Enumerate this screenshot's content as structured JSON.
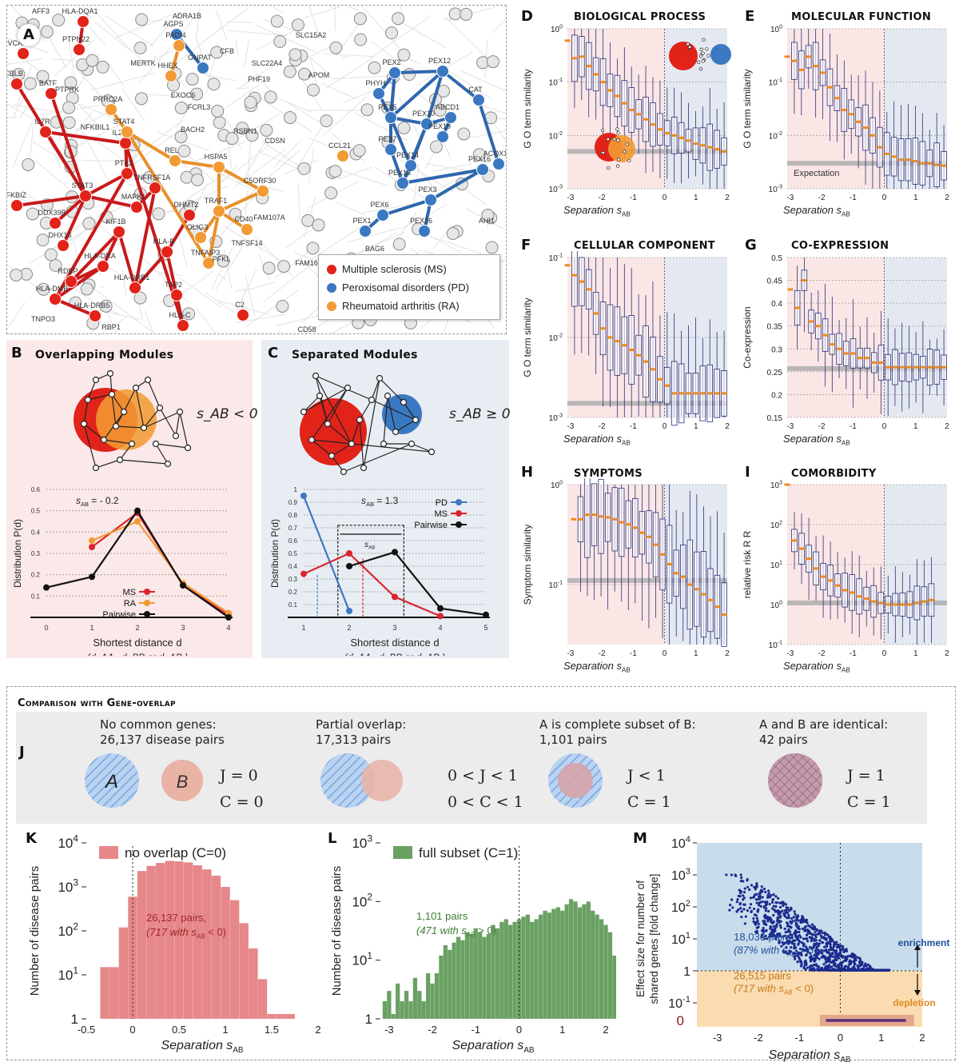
{
  "legend_network": [
    {
      "label": "Multiple sclerosis (MS)",
      "color": "#e2231a"
    },
    {
      "label": "Peroxisomal disorders (PD)",
      "color": "#3b78c2"
    },
    {
      "label": "Rheumatoid arthritis (RA)",
      "color": "#f29a33"
    }
  ],
  "network_genes": {
    "ms": [
      "HLA-DQA1",
      "PTPN22",
      "VCAM1",
      "CBLB",
      "BATF",
      "IL7R",
      "IL2RA",
      "PTK2",
      "STAT3",
      "MAPK1",
      "NFKBIZ",
      "DDX39B",
      "DHX16",
      "KIF1B",
      "RDBP",
      "HLA-DRA",
      "HLA-DMB",
      "HLA-DRB5",
      "HLA-DRB1",
      "HLA-B",
      "TAP2",
      "HLA-C",
      "TNFRSF1A",
      "DHMT2",
      "C2"
    ],
    "pd": [
      "AGPS",
      "GNPAT",
      "PEX2",
      "PEX12",
      "CAT",
      "PHYH",
      "PEX5",
      "PEX10",
      "ABCD1",
      "PEX19",
      "PEX7",
      "PEX14",
      "PEX13",
      "PEX16",
      "ACOX1",
      "PEX6",
      "PEX3",
      "PEX1",
      "PEX26"
    ],
    "ra": [
      "PADI4",
      "HHEX",
      "PRRC2A",
      "STAT4",
      "REL",
      "HSPA5",
      "C5ORF30",
      "TRAF1",
      "OLIG3",
      "TNFAIP3",
      "CD40",
      "CCL21"
    ],
    "other": [
      "AFF3",
      "ADRA1B",
      "SLC15A2",
      "MERTK",
      "CFB",
      "SLC22A4",
      "PHF19",
      "EXOC6",
      "FCRL3",
      "APOM",
      "NFKBIL1",
      "BACH2",
      "RSBN1",
      "CDSN",
      "FAM107A",
      "TNFSF14",
      "FAM167A",
      "PFKL",
      "BAG6",
      "AHI1",
      "TNPO3",
      "PTPRK",
      "CD58",
      "RBP1"
    ]
  },
  "panels": {
    "A": {
      "letter": "A"
    },
    "B": {
      "letter": "B",
      "title": "Overlapping Modules",
      "relation": "s_AB < 0"
    },
    "C": {
      "letter": "C",
      "title": "Separated Modules",
      "relation": "s_AB ≥ 0"
    },
    "D": {
      "letter": "D",
      "title": "BIOLOGICAL PROCESS"
    },
    "E": {
      "letter": "E",
      "title": "MOLECULAR FUNCTION"
    },
    "F": {
      "letter": "F",
      "title": "CELLULAR COMPONENT"
    },
    "G": {
      "letter": "G",
      "title": "CO-EXPRESSION"
    },
    "H": {
      "letter": "H",
      "title": "SYMPTOMS"
    },
    "I": {
      "letter": "I",
      "title": "COMORBIDITY"
    },
    "J": {
      "letter": "J"
    },
    "K": {
      "letter": "K"
    },
    "L": {
      "letter": "L"
    },
    "M": {
      "letter": "M"
    }
  },
  "gene_overlap": {
    "title": "Comparison with Gene-overlap",
    "cases": [
      {
        "line1": "No common genes:",
        "line2": "26,137 disease pairs",
        "j": "J = 0",
        "c": "C = 0",
        "labelA": "A",
        "labelB": "B"
      },
      {
        "line1": "Partial overlap:",
        "line2": "17,313 pairs",
        "j": "0 < J < 1",
        "c": "0 < C < 1"
      },
      {
        "line1": "A is complete subset of B:",
        "line2": "1,101 pairs",
        "j": "J < 1",
        "c": "C = 1"
      },
      {
        "line1": "A and B are identical:",
        "line2": "42 pairs",
        "j": "J = 1",
        "c": "C = 1"
      }
    ]
  },
  "chart_data": [
    {
      "id": "B",
      "type": "line",
      "annotation": "s_AB = - 0.2",
      "xlabel": "Shortest distance d",
      "xlabel2": "(d_AA , d_BB or d_AB )",
      "ylabel": "Distribution P(d)",
      "xlim": [
        0,
        4
      ],
      "ylim": [
        0,
        0.6
      ],
      "x_ticks": [
        "0",
        "1",
        "2",
        "3",
        "4"
      ],
      "y_ticks": [
        "0.1",
        "0.2",
        "0.3",
        "0.4",
        "0.5",
        "0.6"
      ],
      "series": [
        {
          "name": "MS",
          "color": "#d9262e",
          "x": [
            1,
            2,
            3,
            4
          ],
          "y": [
            0.33,
            0.49,
            0.15,
            0.01
          ]
        },
        {
          "name": "RA",
          "color": "#f29a33",
          "x": [
            1,
            2,
            3,
            4
          ],
          "y": [
            0.36,
            0.45,
            0.16,
            0.02
          ]
        },
        {
          "name": "Pairwise",
          "color": "#111111",
          "x": [
            0,
            1,
            2,
            3,
            4
          ],
          "y": [
            0.14,
            0.19,
            0.5,
            0.15,
            0.0
          ]
        }
      ]
    },
    {
      "id": "C",
      "type": "line",
      "annotation": "s_AB = 1.3",
      "bracket_label": "s_AB",
      "xlabel": "Shortest distance d",
      "xlabel2": "(d_AA , d_BB or d_AB )",
      "ylabel": "Distribution P(d)",
      "xlim": [
        1,
        5
      ],
      "ylim": [
        0,
        1
      ],
      "x_ticks": [
        "1",
        "2",
        "3",
        "4",
        "5"
      ],
      "y_ticks": [
        "0.1",
        "0.2",
        "0.3",
        "0.4",
        "0.5",
        "0.6",
        "0.7",
        "0.8",
        "0.9",
        "1"
      ],
      "series": [
        {
          "name": "PD",
          "color": "#3b78c2",
          "x": [
            1,
            2
          ],
          "y": [
            0.95,
            0.05
          ]
        },
        {
          "name": "MS",
          "color": "#d9262e",
          "x": [
            1,
            2,
            3,
            4
          ],
          "y": [
            0.34,
            0.5,
            0.16,
            0.01
          ]
        },
        {
          "name": "Pairwise",
          "color": "#111111",
          "x": [
            2,
            3,
            4,
            5
          ],
          "y": [
            0.4,
            0.51,
            0.07,
            0.02
          ]
        }
      ]
    },
    {
      "id": "D",
      "type": "box",
      "log": true,
      "ylim_exp": [
        -3,
        0
      ],
      "expectation": 0.005,
      "xlabel": "Separation s_AB",
      "ylabel": "G O term similarity",
      "x_ticks": [
        "-3",
        "-2",
        "-1",
        "0",
        "1",
        "2"
      ],
      "y_ticks": [
        "10^-3",
        "10^-2",
        "10^-1",
        "10^0"
      ],
      "medians": [
        0.6,
        0.28,
        0.3,
        0.2,
        0.14,
        0.1,
        0.07,
        0.055,
        0.04,
        0.03,
        0.025,
        0.02,
        0.016,
        0.013,
        0.011,
        0.01,
        0.009,
        0.008,
        0.007,
        0.0065,
        0.006,
        0.0055,
        0.005
      ]
    },
    {
      "id": "E",
      "type": "box",
      "log": true,
      "ylim_exp": [
        -3,
        0
      ],
      "expectation": 0.003,
      "expectation_label": "Expectation",
      "xlabel": "Separation s_AB",
      "ylabel": "G O term similarity",
      "x_ticks": [
        "-3",
        "-2",
        "-1",
        "0",
        "1",
        "2"
      ],
      "y_ticks": [
        "10^-3",
        "10^-2",
        "10^-1",
        "10^0"
      ],
      "medians": [
        0.3,
        0.25,
        0.17,
        0.3,
        0.2,
        0.15,
        0.08,
        0.05,
        0.03,
        0.025,
        0.018,
        0.014,
        0.01,
        0.006,
        0.0045,
        0.004,
        0.0035,
        0.0035,
        0.0033,
        0.003,
        0.003,
        0.0028,
        0.0027
      ]
    },
    {
      "id": "F",
      "type": "box",
      "log": true,
      "ylim_exp": [
        -3,
        -1
      ],
      "expectation": 0.0015,
      "xlabel": "Separation s_AB",
      "ylabel": "G O term similarity",
      "x_ticks": [
        "-3",
        "-2",
        "-1",
        "0",
        "1",
        "2"
      ],
      "y_ticks": [
        "10^-3",
        "10^-2",
        "10^-1"
      ],
      "medians": [
        0.08,
        0.06,
        0.05,
        0.04,
        0.02,
        0.013,
        0.01,
        0.009,
        0.008,
        0.007,
        0.006,
        0.005,
        0.004,
        0.003,
        0.0025,
        0.002,
        0.002,
        0.002,
        0.002,
        0.002,
        0.002,
        0.002,
        0.002
      ]
    },
    {
      "id": "G",
      "type": "box",
      "log": false,
      "ylim": [
        0.15,
        0.5
      ],
      "expectation": 0.257,
      "xlabel": "Separation s_AB",
      "ylabel": "Co-expression",
      "x_ticks": [
        "-3",
        "-2",
        "-1",
        "0",
        "1",
        "2"
      ],
      "y_ticks": [
        "0.15",
        "0.2",
        "0.25",
        "0.3",
        "0.35",
        "0.4",
        "0.45",
        "0.5"
      ],
      "medians": [
        0.43,
        0.39,
        0.45,
        0.36,
        0.35,
        0.33,
        0.31,
        0.3,
        0.29,
        0.29,
        0.28,
        0.28,
        0.27,
        0.27,
        0.26,
        0.26,
        0.26,
        0.26,
        0.26,
        0.26,
        0.26,
        0.26,
        0.26
      ]
    },
    {
      "id": "H",
      "type": "box",
      "log": true,
      "ylim_exp": [
        -1.6,
        0
      ],
      "expectation": 0.11,
      "xlabel": "Separation s_AB",
      "ylabel": "Symptom similarity",
      "x_ticks": [
        "-3",
        "-2",
        "-1",
        "0",
        "1",
        "2"
      ],
      "y_ticks": [
        "10^-1",
        "10^0"
      ],
      "medians": [
        0.45,
        0.45,
        0.5,
        0.5,
        0.48,
        0.47,
        0.45,
        0.42,
        0.4,
        0.37,
        0.33,
        0.3,
        0.25,
        0.2,
        0.16,
        0.13,
        0.12,
        0.1,
        0.09,
        0.08,
        0.07,
        0.06,
        0.05
      ]
    },
    {
      "id": "I",
      "type": "box",
      "log": true,
      "ylim_exp": [
        -1,
        3
      ],
      "expectation": 1.1,
      "xlabel": "Separation s_AB",
      "ylabel": "relative risk R R",
      "x_ticks": [
        "-3",
        "-2",
        "-1",
        "0",
        "1",
        "2"
      ],
      "y_ticks": [
        "10^-1",
        "10^0",
        "10^1",
        "10^2",
        "10^3"
      ],
      "medians": [
        1000,
        40,
        25,
        14,
        8,
        5,
        4,
        3,
        2.3,
        2,
        1.6,
        1.4,
        1.2,
        1.1,
        1.0,
        1.0,
        1.0,
        1.0,
        1.1,
        1.2,
        1.3
      ]
    },
    {
      "id": "K",
      "type": "bar",
      "legend": "no overlap (C=0)",
      "annotation1": "26,137 pairs,",
      "annotation2": "(717 with s_AB < 0)",
      "xlabel": "Separation s_AB",
      "ylabel": "Number of disease pairs",
      "color": "#e6878a",
      "x_ticks": [
        "-0.5",
        "0",
        "0.5",
        "1",
        "1.5",
        "2"
      ],
      "xlim": [
        -0.5,
        2
      ],
      "ylim_exp": [
        0,
        4
      ],
      "y_ticks": [
        "1",
        "10^1",
        "10^2",
        "10^3",
        "10^4"
      ],
      "bin_start": -0.35,
      "bin_width": 0.1,
      "values": [
        15,
        15,
        120,
        600,
        2300,
        3000,
        3500,
        3900,
        3800,
        3600,
        3100,
        2500,
        1800,
        1000,
        500,
        150,
        40,
        8,
        1,
        1,
        1
      ]
    },
    {
      "id": "L",
      "type": "bar",
      "legend": "full subset (C=1)",
      "annotation1": "1,101 pairs",
      "annotation2": "(471 with s_AB > 0)",
      "xlabel": "Separation s_AB",
      "ylabel": "Number of disease pairs",
      "color": "#6aa163",
      "x_ticks": [
        "-3",
        "-2",
        "-1",
        "0",
        "1",
        "2"
      ],
      "xlim": [
        -3.2,
        2
      ],
      "ylim_exp": [
        0,
        3
      ],
      "y_ticks": [
        "1",
        "10^1",
        "10^2",
        "10^3"
      ],
      "bin_start": -3.15,
      "bin_width": 0.1,
      "values": [
        2,
        3,
        1,
        4,
        2,
        3,
        2,
        5,
        3,
        2,
        6,
        4,
        6,
        12,
        18,
        15,
        20,
        25,
        22,
        30,
        28,
        35,
        30,
        25,
        28,
        40,
        35,
        45,
        50,
        40,
        45,
        50,
        55,
        60,
        45,
        50,
        60,
        70,
        65,
        75,
        80,
        70,
        90,
        110,
        100,
        80,
        90,
        100,
        70,
        60,
        50,
        40,
        30,
        12,
        4,
        3,
        5,
        2,
        4,
        3,
        5,
        4,
        2,
        3,
        5
      ]
    },
    {
      "id": "M",
      "type": "scatter",
      "annotation1_a": "18,036 pairs,",
      "annotation1_b": "(87% with s_AB > 0)",
      "annotation2_a": "26,515 pairs",
      "annotation2_b": "(717 with s_AB < 0)",
      "label_up": "enrichment",
      "label_down": "depletion",
      "zero_label": "0",
      "xlabel": "Separation s_AB",
      "ylabel": "Effect size for number of shared genes [fold change]",
      "x_ticks": [
        "-3",
        "-2",
        "-1",
        "0",
        "1",
        "2"
      ],
      "xlim": [
        -3.5,
        2
      ],
      "ylim_exp": [
        -1,
        4
      ],
      "y_ticks": [
        "10^-1",
        "1",
        "10^1",
        "10^2",
        "10^3",
        "10^4"
      ],
      "points_summary": {
        "x_range": [
          -2.8,
          1.2
        ],
        "y_range": [
          1,
          1000
        ]
      }
    }
  ]
}
